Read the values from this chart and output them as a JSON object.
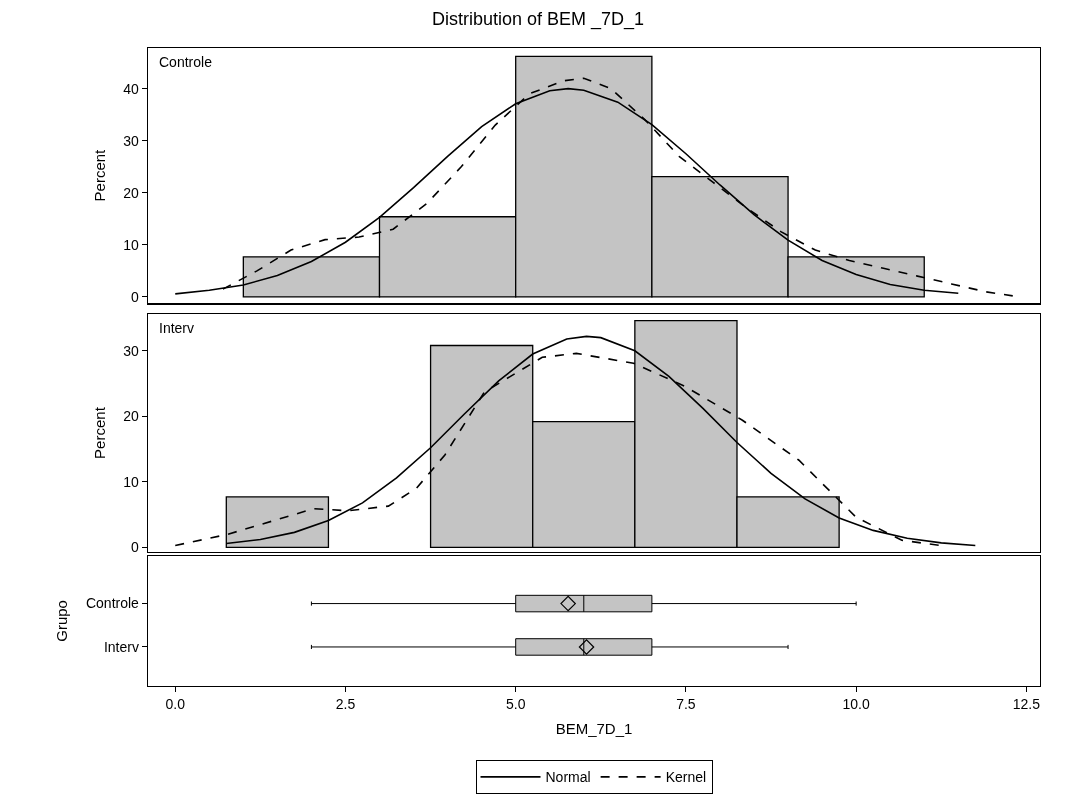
{
  "chart_data": [
    {
      "type": "histogram",
      "title": "Distribution of BEM _7D_1",
      "ylabel": "Percent",
      "annotations": [
        "Controle"
      ],
      "bins": [
        1,
        3,
        5,
        7,
        9,
        11
      ],
      "values": [
        7.7,
        15.4,
        46.2,
        23.1,
        7.7
      ],
      "color": "#c4c4c4",
      "series": [
        {
          "type": "line",
          "name": "Normal",
          "color": "#000000",
          "line_style": "solid",
          "x": [
            0,
            0.5,
            1,
            1.5,
            2,
            2.5,
            3,
            3.5,
            4,
            4.5,
            5,
            5.5,
            5.77,
            6,
            6.5,
            7,
            7.5,
            8,
            8.5,
            9,
            9.5,
            10,
            10.5,
            11,
            11.5
          ],
          "values": [
            0.6,
            1.3,
            2.3,
            4.1,
            6.8,
            10.5,
            15.3,
            21.0,
            27.0,
            32.7,
            37.1,
            39.6,
            40.0,
            39.7,
            37.4,
            33.1,
            27.5,
            21.5,
            15.8,
            10.9,
            7.0,
            4.3,
            2.4,
            1.3,
            0.7
          ]
        },
        {
          "type": "line",
          "name": "Kernel",
          "color": "#000000",
          "line_style": "dashed",
          "x": [
            0.7,
            1.2,
            1.7,
            2.2,
            2.7,
            3.2,
            3.7,
            4.2,
            4.7,
            5.2,
            5.7,
            6.0,
            6.4,
            6.9,
            7.4,
            7.9,
            8.4,
            8.9,
            9.4,
            9.9,
            10.4,
            10.9,
            11.4,
            11.9,
            12.3
          ],
          "values": [
            1.5,
            5,
            9,
            11,
            11.5,
            13,
            18,
            25,
            33,
            39,
            41.5,
            42,
            40,
            34,
            27,
            22,
            17,
            12.5,
            9,
            7,
            5.5,
            4,
            2.5,
            1,
            0.2
          ]
        }
      ],
      "xlim": [
        -0.4,
        12.7
      ],
      "ylim": [
        -1.2,
        47.8
      ],
      "yticks": [
        0,
        10,
        20,
        30,
        40
      ],
      "tick_labels": "y",
      "grid": false,
      "legend": "bottom"
    },
    {
      "type": "histogram",
      "ylabel": "Percent",
      "annotations": [
        "Interv"
      ],
      "bins": [
        0.75,
        2.25,
        3.75,
        5.25,
        6.75,
        8.25,
        9.75
      ],
      "values": [
        7.7,
        0,
        30.8,
        19.2,
        34.6,
        7.7
      ],
      "color": "#c4c4c4",
      "series": [
        {
          "type": "line",
          "name": "Normal",
          "color": "#000000",
          "line_style": "solid",
          "x": [
            0.75,
            1.25,
            1.75,
            2.25,
            2.75,
            3.25,
            3.75,
            4.25,
            4.75,
            5.25,
            5.75,
            6.04,
            6.25,
            6.75,
            7.25,
            7.75,
            8.25,
            8.75,
            9.25,
            9.75,
            10.25,
            10.75,
            11.25,
            11.75
          ],
          "values": [
            0.6,
            1.2,
            2.3,
            4.1,
            6.8,
            10.6,
            15.2,
            20.4,
            25.4,
            29.5,
            31.8,
            32.2,
            32.0,
            30.0,
            26.1,
            21.2,
            16.0,
            11.3,
            7.4,
            4.5,
            2.6,
            1.4,
            0.7,
            0.3
          ]
        },
        {
          "type": "line",
          "name": "Kernel",
          "color": "#000000",
          "line_style": "dashed",
          "x": [
            0.0,
            0.77,
            1.45,
            2.03,
            2.54,
            3.13,
            3.54,
            3.96,
            4.54,
            5.39,
            5.89,
            6.73,
            7.48,
            8.33,
            9.16,
            10.0,
            10.67,
            11.3
          ],
          "values": [
            0.3,
            2.0,
            4.1,
            5.9,
            5.6,
            6.3,
            9.0,
            14.1,
            23.7,
            29.0,
            29.6,
            28.1,
            24.6,
            19.4,
            13.3,
            4.6,
            1.1,
            0.2
          ]
        }
      ],
      "xlim": [
        -0.4,
        12.7
      ],
      "ylim": [
        -0.7,
        35.6
      ],
      "yticks": [
        0,
        10,
        20,
        30
      ],
      "tick_labels": "y",
      "grid": false,
      "legend": "bottom"
    },
    {
      "type": "box",
      "orientation": "horizontal",
      "xlabel": "BEM_7D_1",
      "ylabel": "Grupo",
      "categories": [
        "Controle",
        "Interv"
      ],
      "color": "#c4c4c4",
      "boxes": [
        {
          "low": 2,
          "q1": 5,
          "median": 6,
          "q3": 7,
          "high": 10,
          "mean": 5.77
        },
        {
          "low": 2,
          "q1": 5,
          "median": 6,
          "q3": 7,
          "high": 9,
          "mean": 6.04
        }
      ],
      "xlim": [
        -0.4,
        12.7
      ],
      "xticks": [
        {
          "value": 0,
          "label": "0.0"
        },
        2.5,
        {
          "value": 5,
          "label": "5.0"
        },
        7.5,
        {
          "value": 10,
          "label": "10.0"
        },
        12.5
      ],
      "grid": false
    }
  ]
}
